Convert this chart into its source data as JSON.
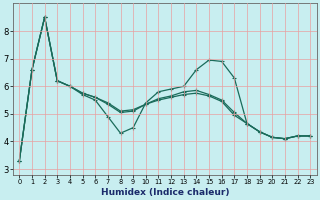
{
  "xlabel": "Humidex (Indice chaleur)",
  "background_color": "#c8eef0",
  "grid_color_h": "#e8a0a0",
  "grid_color_v": "#e8a0a0",
  "line_color": "#1a6b5a",
  "x_values": [
    0,
    1,
    2,
    3,
    4,
    5,
    6,
    7,
    8,
    9,
    10,
    11,
    12,
    13,
    14,
    15,
    16,
    17,
    18,
    19,
    20,
    21,
    22,
    23
  ],
  "peaked": [
    3.3,
    6.6,
    8.5,
    6.2,
    6.0,
    5.7,
    5.5,
    4.9,
    4.3,
    4.5,
    5.4,
    5.8,
    5.9,
    6.0,
    6.6,
    6.95,
    6.9,
    6.3,
    4.65,
    4.35,
    4.15,
    4.1,
    4.2,
    4.2
  ],
  "middle": [
    3.3,
    6.6,
    8.5,
    6.2,
    6.0,
    5.75,
    5.6,
    5.35,
    5.05,
    5.1,
    5.35,
    5.55,
    5.65,
    5.8,
    5.85,
    5.7,
    5.5,
    5.05,
    4.65,
    4.35,
    4.15,
    4.1,
    4.2,
    4.2
  ],
  "linear": [
    3.3,
    6.6,
    8.5,
    6.2,
    6.0,
    5.75,
    5.6,
    5.4,
    5.1,
    5.15,
    5.35,
    5.5,
    5.6,
    5.7,
    5.75,
    5.65,
    5.45,
    4.95,
    4.65,
    4.35,
    4.15,
    4.1,
    4.2,
    4.2
  ],
  "ylim": [
    2.8,
    9.0
  ],
  "yticks": [
    3,
    4,
    5,
    6,
    7,
    8
  ],
  "xtick_labels": [
    "0",
    "1",
    "2",
    "3",
    "4",
    "5",
    "6",
    "7",
    "8",
    "9",
    "10",
    "11",
    "12",
    "13",
    "14",
    "15",
    "16",
    "17",
    "18",
    "19",
    "20",
    "21",
    "22",
    "23"
  ]
}
